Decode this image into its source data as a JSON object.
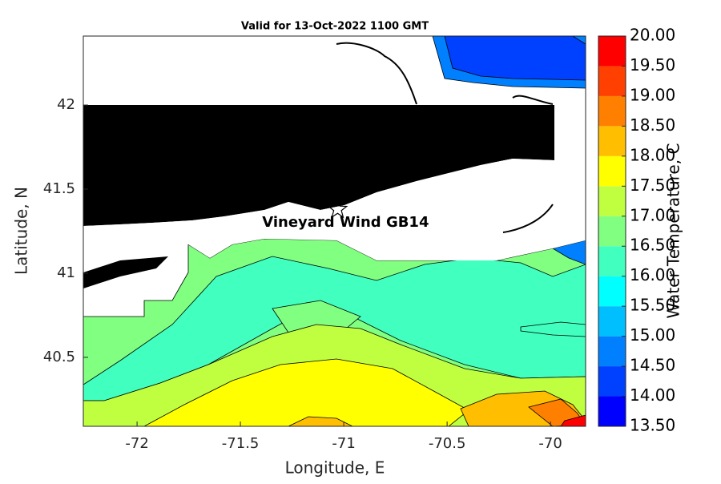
{
  "chart_data": {
    "type": "contour",
    "title": "Valid for 13-Oct-2022 1100 GMT",
    "x_label": "Longitude, E",
    "y_label": "Latitude, N",
    "xlim": [
      -72.26,
      -69.83
    ],
    "ylim": [
      40.09,
      42.41
    ],
    "xticks": [
      -72,
      -71.5,
      -71,
      -70.5,
      -70
    ],
    "yticks": [
      40.5,
      41,
      41.5,
      42
    ],
    "colorbar": {
      "label": "Water Temperature, C",
      "lim": [
        13.5,
        20
      ],
      "ticks": [
        {
          "value": 13.5,
          "label": "13.50"
        },
        {
          "value": 14,
          "label": "14.00"
        },
        {
          "value": 14.5,
          "label": "14.50"
        },
        {
          "value": 15,
          "label": "15.00"
        },
        {
          "value": 15.5,
          "label": "15.50"
        },
        {
          "value": 16,
          "label": "16.00"
        },
        {
          "value": 16.5,
          "label": "16.50"
        },
        {
          "value": 17,
          "label": "17.00"
        },
        {
          "value": 17.5,
          "label": "17.50"
        },
        {
          "value": 18,
          "label": "18.00"
        },
        {
          "value": 18.5,
          "label": "18.50"
        },
        {
          "value": 19,
          "label": "19.00"
        },
        {
          "value": 19.5,
          "label": "19.50"
        },
        {
          "value": 20,
          "label": "20.00"
        }
      ],
      "colors": [
        "#0000ff",
        "#0040ff",
        "#0080ff",
        "#00bfff",
        "#00ffff",
        "#40ffbf",
        "#80ff80",
        "#bfff40",
        "#ffff00",
        "#ffbf00",
        "#ff8000",
        "#ff4000",
        "#ff0000"
      ]
    },
    "annotations": [
      {
        "text": "Vineyard Wind GB14",
        "x": -71.03,
        "y": 41.38
      }
    ]
  }
}
